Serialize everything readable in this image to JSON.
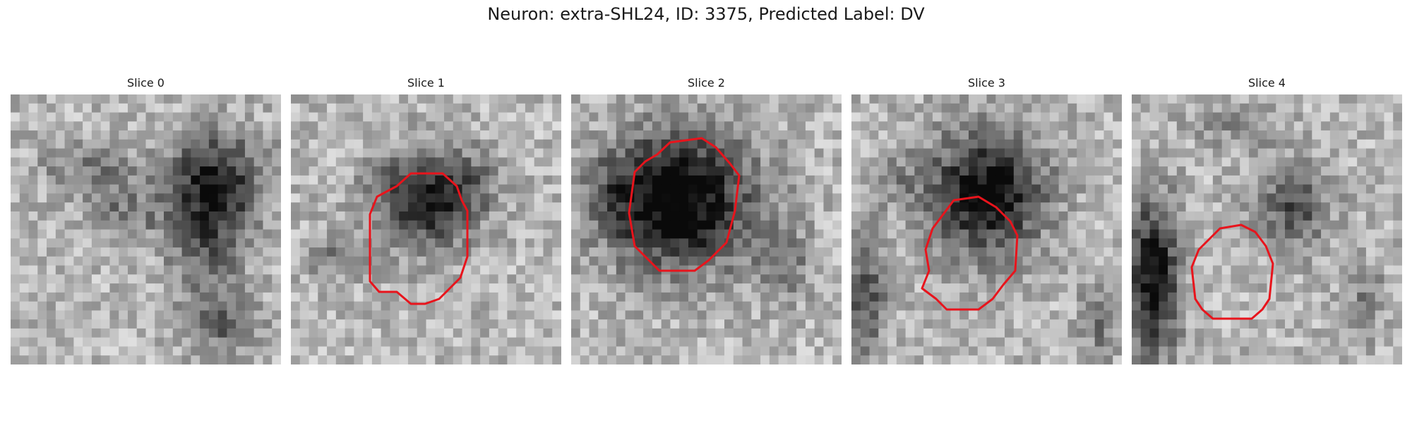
{
  "figure": {
    "title": "Neuron: extra-SHL24, ID: 3375, Predicted Label: DV"
  },
  "colors": {
    "outline": "#e8141c",
    "background": "#ffffff"
  },
  "panels": [
    {
      "title": "Slice 0",
      "has_outline": false
    },
    {
      "title": "Slice 1",
      "has_outline": true
    },
    {
      "title": "Slice 2",
      "has_outline": true
    },
    {
      "title": "Slice 3",
      "has_outline": true
    },
    {
      "title": "Slice 4",
      "has_outline": true
    }
  ]
}
